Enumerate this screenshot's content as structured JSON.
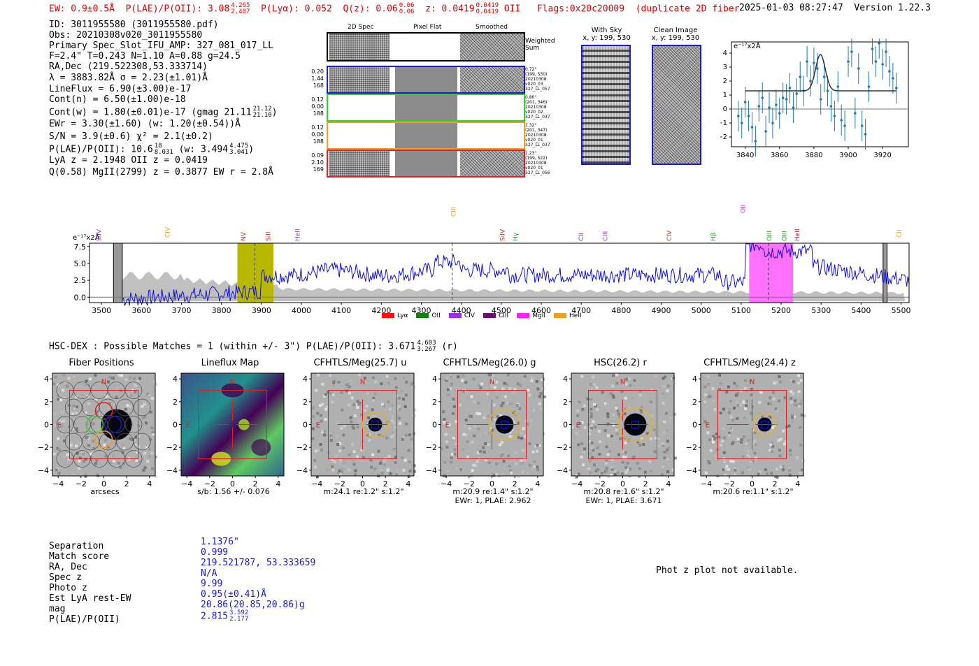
{
  "header": {
    "ew": "EW: 0.9±0.5Å",
    "plae_label": "P(LAE)/P(OII): 3.08",
    "plae_hi": "4.265",
    "plae_lo": "2.487",
    "plya": "P(Lyα): 0.052",
    "qz_label": "Q(z): 0.06",
    "qz_hi": "0.06",
    "qz_lo": "0.06",
    "z_label": "z: 0.0419",
    "z_hi": "0.0419",
    "z_lo": "0.0419",
    "z_line": "OII",
    "flags": "Flags:0x20c20009",
    "dup": "(duplicate 2D fibers)",
    "timestamp": "2025-01-03 08:27:47",
    "version": "Version 1.22.3"
  },
  "info": {
    "id": "ID: 3011955580 (3011955580.pdf)",
    "obs": "Obs: 20210308v020_3011955580",
    "primary": "Primary Spec_Slot_IFU_AMP: 327_081_017_LL",
    "fwhm": "F=2.4\"  T=0.243  N=1.10  A=0.88  g=24.5",
    "radec": "RA,Dec (219.522308,53.333714)",
    "lambda": "λ = 3883.82Å  σ = 2.23(±1.01)Å",
    "lineflux": "LineFlux = 6.90(±3.00)e-17",
    "contn": "Cont(n) = 6.50(±1.00)e-18",
    "contw": "Cont(w) = 1.80(±0.01)e-17 (gmag 21.11",
    "contw_hi": "21.12",
    "contw_lo": "21.10",
    "contw_end": ")",
    "ewr": "EWr = 3.30(±1.60) (w: 1.20(±0.54))Å",
    "sn": "S/N = 3.9(±0.6)  χ² = 2.1(±0.2)",
    "plae": "P(LAE)/P(OII): 10.6",
    "plae_hi": "18",
    "plae_lo": "8.031",
    "plae_w": "(w: 3.494",
    "plae_w_hi": "4.475",
    "plae_w_lo": "3.041",
    "plae_end": ")",
    "lya": "LyA z = 2.1948  OII z = 0.0419",
    "mgii": "Q(0.58) MgII(2799) z = 0.3877  EW r = 2.8Å"
  },
  "spec2d": {
    "col_titles": [
      "2D Spec",
      "Pixel Flat",
      "Smoothed"
    ],
    "weighted_sum": "Weighted Sum",
    "rows": [
      {
        "left": [
          "0.20",
          "1.44",
          "168"
        ],
        "right": [
          "0.72\"",
          "(199, 530)",
          "20210308",
          "v020_03",
          "327_LL_057"
        ],
        "color": "#1a1ad0"
      },
      {
        "left": [
          "0.12",
          "0.00",
          "188"
        ],
        "right": [
          "0.80\"",
          "(201, 346)",
          "20210308",
          "v020_02",
          "327_LL_037"
        ],
        "color": "#30d030"
      },
      {
        "left": [
          "0.12",
          "0.00",
          "188"
        ],
        "right": [
          "1.32\"",
          "(201, 347)",
          "20210308",
          "v020_01",
          "327_LL_037"
        ],
        "color": "#f0a020"
      },
      {
        "left": [
          "0.09",
          "2.10",
          "169"
        ],
        "right": [
          "1.23\"",
          "(199, 522)",
          "20210308",
          "v020_01",
          "327_LL_056"
        ],
        "color": "#e02020"
      }
    ]
  },
  "sky": {
    "with_sky_title": "With Sky",
    "with_sky_xy": "x, y: 199, 530",
    "clean_title": "Clean Image",
    "clean_xy": "x, y: 199, 530"
  },
  "zoom": {
    "unit": "e⁻¹⁷x2Å",
    "yticks": [
      "4",
      "3",
      "2",
      "1",
      "0",
      "−1",
      "−2"
    ],
    "xticks": [
      "3840",
      "3860",
      "3880",
      "3900",
      "3920"
    ]
  },
  "spectrum": {
    "unit": "e⁻¹⁷x2Å",
    "yticks": [
      "7.5",
      "5.0",
      "2.5",
      "0.0"
    ],
    "xticks": [
      "3500",
      "3600",
      "3700",
      "3800",
      "3900",
      "4000",
      "4100",
      "4200",
      "4300",
      "4400",
      "4500",
      "4600",
      "4700",
      "4800",
      "4900",
      "5000",
      "5100",
      "5200",
      "5300",
      "5400",
      "5500"
    ],
    "lines": [
      {
        "name": "SiIV",
        "color": "#9a30e0"
      },
      {
        "name": "CIV",
        "color": "#f0a020"
      },
      {
        "name": "NV",
        "color": "#e02020"
      },
      {
        "name": "SiII",
        "color": "#e02020"
      },
      {
        "name": "HeII",
        "color": "#9a30e0"
      },
      {
        "name": "CIII",
        "color": "#f0a020"
      },
      {
        "name": "SiIV",
        "color": "#e02020"
      },
      {
        "name": "Hγ",
        "color": "#20a020"
      },
      {
        "name": "CII",
        "color": "#8020a0"
      },
      {
        "name": "CIII",
        "color": "#9a30e0"
      },
      {
        "name": "CIV",
        "color": "#e02020"
      },
      {
        "name": "Hβ",
        "color": "#20a020"
      },
      {
        "name": "OII",
        "color": "#e020e0"
      },
      {
        "name": "OIII",
        "color": "#20a020"
      },
      {
        "name": "OIII",
        "color": "#20a020"
      },
      {
        "name": "HeII",
        "color": "#e02020"
      },
      {
        "name": "CII",
        "color": "#f0a020"
      }
    ],
    "legend": [
      {
        "name": "Lyα",
        "color": "#ff1010"
      },
      {
        "name": "OII",
        "color": "#108010"
      },
      {
        "name": "CIV",
        "color": "#9a30e0"
      },
      {
        "name": "CIII",
        "color": "#6a1070"
      },
      {
        "name": "MgII",
        "color": "#ff20ff"
      },
      {
        "name": "HeII",
        "color": "#f0a020"
      }
    ]
  },
  "hsc": {
    "title": "HSC-DEX : Possible Matches = 1 (within +/- 3\")  P(LAE)/P(OII): 3.671",
    "hi": "4.603",
    "lo": "3.267",
    "band": "(r)"
  },
  "cutouts": [
    {
      "title": "Fiber Positions",
      "sub": "arcsecs",
      "sub2": ""
    },
    {
      "title": "Lineflux Map",
      "sub": "s/b: 1.56 +/- 0.076",
      "sub2": ""
    },
    {
      "title": "CFHTLS/Meg(25.7) u",
      "sub": "m:24.1  re:1.2\"  s:1.2\"",
      "sub2": ""
    },
    {
      "title": "CFHTLS/Meg(26.0) g",
      "sub": "m:20.9  re:1.4\"  s:1.2\"",
      "sub2": "EWr: 1, PLAE: 2.962"
    },
    {
      "title": "HSC(26.2) r",
      "sub": "m:20.8  re:1.6\"  s:1.2\"",
      "sub2": "EWr: 1, PLAE: 3.671"
    },
    {
      "title": "CFHTLS/Meg(24.4) z",
      "sub": "m:20.6  re:1.1\"  s:1.2\"",
      "sub2": ""
    }
  ],
  "cut_axes": {
    "yticks": [
      "4",
      "2",
      "0",
      "−2",
      "−4"
    ],
    "xticks": [
      "−4",
      "−2",
      "0",
      "2",
      "4"
    ],
    "north": "N",
    "east": "E"
  },
  "details": {
    "labels": [
      "Separation",
      "Match score",
      "RA, Dec",
      "Spec z",
      "Photo z",
      "Est LyA rest-EW",
      "mag",
      "P(LAE)/P(OII)"
    ],
    "values": [
      "1.1376\"",
      "0.999",
      "219.521787, 53.333659",
      "N/A",
      "9.99",
      "0.95(±0.41)Å",
      "20.86(20.85,20.86)g",
      "2.815"
    ],
    "plae_hi": "3.592",
    "plae_lo": "2.177"
  },
  "photz": "Phot z plot not available."
}
